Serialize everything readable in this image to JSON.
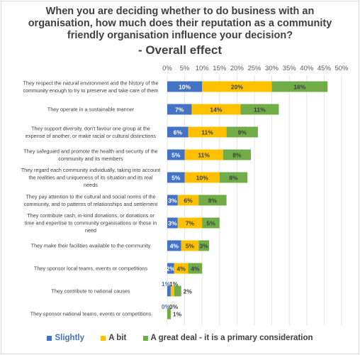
{
  "chart_data": {
    "type": "bar",
    "orientation": "horizontal",
    "stacked": true,
    "title": "When you are deciding whether to do business with an organisation, how much does their reputation as a community friendly organisation influence your decision?",
    "subtitle": "- Overall effect",
    "xlim": [
      0,
      50
    ],
    "x_ticks": [
      "0%",
      "5%",
      "10%",
      "15%",
      "20%",
      "25%",
      "30%",
      "35%",
      "40%",
      "45%",
      "50%"
    ],
    "x_tick_values": [
      0,
      5,
      10,
      15,
      20,
      25,
      30,
      35,
      40,
      45,
      50
    ],
    "grid": true,
    "legend_position": "bottom",
    "categories": [
      "They respect the natural environment and the history of the community enough to try to preserve and take care of them",
      "They operate in a sustainable manner",
      "They support diversity, don't favour one group at the expense of another, or make racial or cultural distinctions",
      "They safeguard and promote the health and security of the community and its members",
      "They regard each community individually, taking into account the realities and uniqueness of its situation and its real needs",
      "They pay attention to the cultural and social norms of the community, and to patterns of relationships and settlement",
      "They contribute cash, in-kind donations, or donations or time and expertise to community organisations or those in need",
      "They make their facilities available to the community",
      "They sponsor local teams, events or competitions",
      "They contribute to national causes",
      "They sponsor national teams, events or competitions"
    ],
    "series": [
      {
        "name": "Slightly",
        "color": "#4472c4",
        "values": [
          10,
          7,
          6,
          5,
          5,
          3,
          3,
          4,
          2,
          1,
          0
        ],
        "labels": [
          "10%",
          "7%",
          "6%",
          "5%",
          "5%",
          "3%",
          "3%",
          "4%",
          "2%",
          "1%",
          "0%"
        ]
      },
      {
        "name": "A bit",
        "color": "#ffc000",
        "values": [
          20,
          14,
          11,
          11,
          10,
          6,
          7,
          5,
          4,
          1,
          0
        ],
        "labels": [
          "20%",
          "14%",
          "11%",
          "11%",
          "10%",
          "6%",
          "7%",
          "5%",
          "4%",
          "1%",
          "0%"
        ]
      },
      {
        "name": "A great deal - it is a primary consideration",
        "color": "#70ad47",
        "values": [
          16,
          11,
          9,
          8,
          8,
          8,
          5,
          3,
          4,
          2,
          1
        ],
        "labels": [
          "16%",
          "11%",
          "9%",
          "8%",
          "8%",
          "8%",
          "5%",
          "3%",
          "4%",
          "2%",
          "1%"
        ]
      }
    ]
  }
}
